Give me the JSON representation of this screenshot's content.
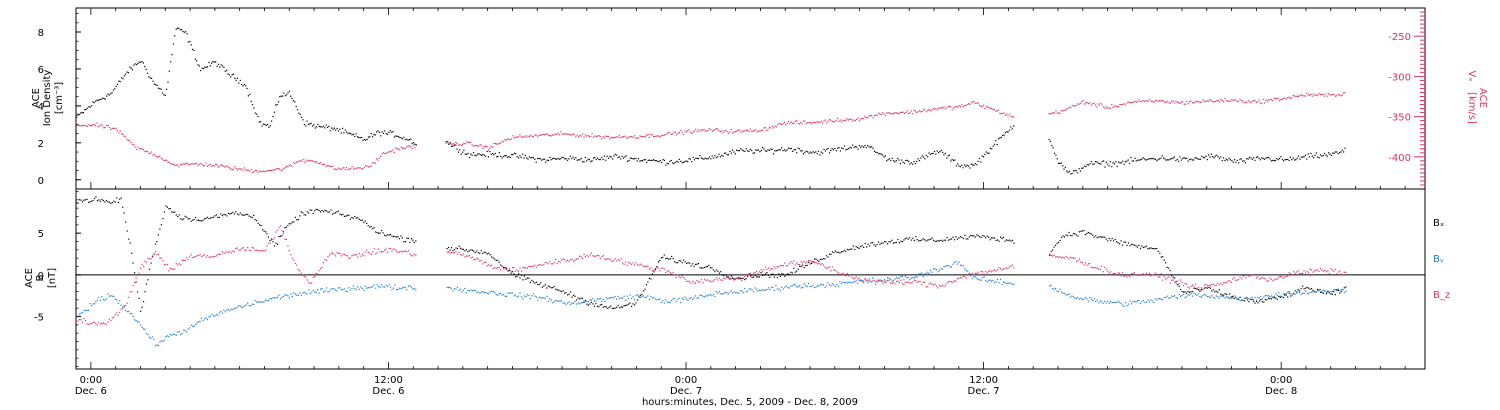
{
  "figure": {
    "xlabel": "hours:minutes, Dec.  5, 2009 - Dec.  8, 2009",
    "xticks": [
      {
        "time": "0:00",
        "day": "Dec. 6",
        "hours": 0
      },
      {
        "time": "12:00",
        "day": "Dec. 6",
        "hours": 12
      },
      {
        "time": "0:00",
        "day": "Dec. 7",
        "hours": 24
      },
      {
        "time": "12:00",
        "day": "Dec. 7",
        "hours": 36
      },
      {
        "time": "0:00",
        "day": "Dec. 8",
        "hours": 48
      }
    ],
    "xlim_hours": [
      -0.6,
      53.8
    ]
  },
  "chart_data": [
    {
      "type": "scatter",
      "left_label": {
        "line1": "ACE",
        "line2": "Ion Density",
        "unit": "[cm⁻³]"
      },
      "right_label": {
        "line1": "ACE",
        "var": "Vₓ",
        "unit": "[km/s]"
      },
      "ylim_left": [
        -0.5,
        9.3
      ],
      "yticks_left": [
        0,
        2,
        4,
        6,
        8
      ],
      "ylim_right": [
        -440,
        -215
      ],
      "yticks_right": [
        -250,
        -300,
        -350,
        -400
      ],
      "colors": {
        "density": "#000000",
        "velocity": "#e0345f"
      },
      "gaps": [
        [
          13.1,
          14.3
        ],
        [
          37.2,
          38.6
        ]
      ],
      "series": [
        {
          "key": "density",
          "axis": "left",
          "x": [
            -0.6,
            0.2,
            0.8,
            1.4,
            2.0,
            2.5,
            3.0,
            3.4,
            3.8,
            4.4,
            5.0,
            5.6,
            6.2,
            6.8,
            7.2,
            7.6,
            8.0,
            8.6,
            9.2,
            9.8,
            10.4,
            11.0,
            11.6,
            12.2,
            12.8,
            13.1,
            14.3,
            15.2,
            16.2,
            17.2,
            18.2,
            19.2,
            20.2,
            21.2,
            22.2,
            23.2,
            24.2,
            25.2,
            26.2,
            27.2,
            28.2,
            29.2,
            30.2,
            31.2,
            32.2,
            33.2,
            34.2,
            35.0,
            35.6,
            37.2,
            38.6,
            39.0,
            39.5,
            40.2,
            41.2,
            42.2,
            43.2,
            44.2,
            45.2,
            46.2,
            47.2,
            48.2,
            49.2,
            50.0,
            50.6
          ],
          "y": [
            3.4,
            4.3,
            4.7,
            5.8,
            6.5,
            5.3,
            4.6,
            8.2,
            8.0,
            6.0,
            6.4,
            5.7,
            5.2,
            3.1,
            2.9,
            4.6,
            4.7,
            3.1,
            2.9,
            2.8,
            2.5,
            2.2,
            2.6,
            2.5,
            2.2,
            2.0,
            2.1,
            1.4,
            1.4,
            1.3,
            1.1,
            1.2,
            1.1,
            1.3,
            1.1,
            1.0,
            1.1,
            1.3,
            1.6,
            1.6,
            1.7,
            1.5,
            1.7,
            1.9,
            1.1,
            1.0,
            1.6,
            0.8,
            0.8,
            3.0,
            2.4,
            1.0,
            0.3,
            0.9,
            0.9,
            1.1,
            1.2,
            1.1,
            1.3,
            1.0,
            1.2,
            1.1,
            1.3,
            1.4,
            1.6
          ]
        },
        {
          "key": "velocity",
          "axis": "right",
          "x": [
            -0.6,
            0.2,
            1.0,
            1.8,
            2.6,
            3.4,
            4.2,
            5.0,
            5.8,
            6.6,
            7.2,
            7.8,
            8.4,
            9.0,
            9.8,
            10.5,
            11.2,
            11.8,
            12.4,
            13.1,
            14.3,
            15.2,
            16.0,
            17.0,
            18.0,
            19.0,
            20.0,
            21.0,
            22.0,
            23.0,
            24.0,
            25.0,
            26.0,
            27.0,
            28.0,
            29.0,
            30.0,
            31.0,
            32.0,
            33.0,
            34.0,
            35.0,
            35.6,
            37.2,
            38.0,
            38.6,
            39.2,
            40.0,
            41.0,
            42.0,
            43.0,
            44.0,
            45.0,
            46.0,
            47.0,
            48.0,
            49.0,
            50.0,
            50.6
          ],
          "y": [
            -360,
            -360,
            -365,
            -388,
            -397,
            -410,
            -408,
            -410,
            -414,
            -417,
            -416,
            -414,
            -404,
            -404,
            -414,
            -414,
            -412,
            -395,
            -389,
            -386,
            -383,
            -383,
            -388,
            -375,
            -373,
            -371,
            -373,
            -375,
            -374,
            -372,
            -368,
            -366,
            -368,
            -366,
            -357,
            -357,
            -354,
            -352,
            -345,
            -344,
            -340,
            -337,
            -332,
            -350,
            -348,
            -346,
            -342,
            -331,
            -338,
            -331,
            -330,
            -332,
            -330,
            -329,
            -331,
            -327,
            -322,
            -323,
            -320
          ]
        }
      ]
    },
    {
      "type": "scatter",
      "left_label": {
        "line1": "ACE",
        "line2": "B",
        "unit": "[nT]"
      },
      "ylim": [
        -11.3,
        10.3
      ],
      "yticks": [
        -5,
        0,
        5
      ],
      "zero_line": true,
      "legend": [
        "Bₓ",
        "Bᵧ",
        "B_z"
      ],
      "gaps": [
        [
          13.1,
          14.3
        ],
        [
          37.2,
          38.6
        ]
      ],
      "series": [
        {
          "name": "Bₓ",
          "color": "#000000",
          "x": [
            -0.6,
            0.2,
            0.8,
            1.2,
            1.6,
            2.0,
            2.4,
            3.0,
            3.6,
            4.2,
            5.0,
            5.8,
            6.6,
            7.4,
            7.8,
            8.4,
            9.0,
            9.6,
            10.2,
            10.8,
            11.4,
            12.0,
            12.6,
            13.1,
            14.3,
            15.0,
            16.0,
            17.0,
            18.0,
            19.0,
            20.0,
            21.0,
            22.0,
            23.0,
            24.0,
            25.0,
            26.0,
            27.0,
            28.0,
            29.0,
            30.0,
            31.0,
            32.0,
            33.0,
            34.0,
            35.0,
            35.6,
            37.2,
            38.0,
            38.6,
            39.2,
            40.0,
            41.0,
            42.0,
            43.0,
            44.0,
            45.0,
            46.0,
            47.0,
            48.0,
            49.0,
            50.0,
            50.6
          ],
          "y": [
            8.9,
            9.1,
            8.7,
            9.2,
            3.0,
            -4.5,
            1.5,
            8.3,
            7.0,
            6.7,
            7.0,
            7.5,
            7.0,
            3.5,
            5.5,
            7.2,
            7.8,
            7.6,
            7.2,
            6.8,
            5.5,
            4.8,
            4.4,
            4.2,
            3.3,
            3.1,
            2.7,
            0.1,
            -1.0,
            -1.9,
            -3.2,
            -4.0,
            -3.3,
            2.2,
            1.5,
            0.9,
            -0.4,
            0.1,
            0.0,
            1.5,
            2.8,
            3.5,
            4.0,
            4.3,
            4.2,
            4.5,
            4.7,
            4.2,
            3.4,
            2.5,
            4.8,
            5.2,
            4.3,
            3.6,
            3.1,
            -2.1,
            -1.6,
            -2.6,
            -3.2,
            -2.6,
            -1.5,
            -2.3,
            -1.6
          ]
        },
        {
          "name": "Bᵧ",
          "color": "#1a7fd4",
          "x": [
            -0.6,
            0.2,
            0.8,
            1.4,
            2.0,
            2.6,
            3.2,
            3.8,
            4.6,
            5.6,
            6.6,
            7.6,
            8.6,
            9.6,
            10.6,
            11.6,
            12.4,
            13.1,
            14.3,
            15.2,
            16.2,
            17.2,
            18.2,
            19.2,
            20.2,
            21.2,
            22.2,
            23.2,
            24.2,
            25.2,
            26.2,
            27.2,
            28.2,
            29.2,
            30.2,
            31.2,
            32.2,
            33.2,
            34.2,
            35.0,
            35.6,
            37.2,
            38.6,
            39.6,
            40.6,
            41.6,
            42.6,
            43.6,
            44.6,
            45.6,
            46.6,
            47.6,
            48.6,
            49.6,
            50.6
          ],
          "y": [
            -5.0,
            -3.1,
            -2.3,
            -4.0,
            -6.0,
            -8.3,
            -7.2,
            -6.6,
            -5.2,
            -4.1,
            -3.3,
            -2.6,
            -2.1,
            -1.8,
            -1.5,
            -1.3,
            -1.5,
            -1.4,
            -1.5,
            -1.8,
            -2.1,
            -2.4,
            -2.7,
            -3.4,
            -3.0,
            -2.7,
            -2.5,
            -3.1,
            -2.8,
            -2.2,
            -1.9,
            -1.7,
            -1.3,
            -1.2,
            -1.0,
            -0.7,
            -0.5,
            -0.2,
            0.8,
            1.6,
            -0.4,
            -1.0,
            -1.2,
            -2.6,
            -3.1,
            -3.4,
            -3.1,
            -2.6,
            -2.3,
            -2.6,
            -2.8,
            -2.4,
            -2.1,
            -1.9,
            -1.8
          ]
        },
        {
          "name": "B_z",
          "color": "#e0345f",
          "x": [
            -0.6,
            0.2,
            0.8,
            1.4,
            2.0,
            2.6,
            3.2,
            4.0,
            5.0,
            6.0,
            7.0,
            7.6,
            8.2,
            8.8,
            9.6,
            10.4,
            11.2,
            12.0,
            12.6,
            13.1,
            14.3,
            15.2,
            16.2,
            17.2,
            18.2,
            19.2,
            20.2,
            21.2,
            22.2,
            23.2,
            24.2,
            25.2,
            26.2,
            27.2,
            28.2,
            29.2,
            30.2,
            31.2,
            32.2,
            33.2,
            34.2,
            35.0,
            35.6,
            37.2,
            38.6,
            39.6,
            40.6,
            41.6,
            42.6,
            43.6,
            44.6,
            45.6,
            46.6,
            47.6,
            48.6,
            49.6,
            50.6
          ],
          "y": [
            -5.1,
            -5.9,
            -5.4,
            -3.5,
            1.0,
            2.8,
            0.5,
            2.4,
            2.3,
            3.2,
            2.9,
            6.0,
            1.5,
            -1.0,
            2.6,
            2.3,
            2.7,
            3.1,
            2.8,
            2.5,
            2.9,
            2.3,
            1.0,
            0.6,
            1.4,
            1.8,
            2.5,
            1.8,
            1.1,
            0.6,
            -0.8,
            -0.5,
            -0.3,
            0.8,
            1.4,
            1.6,
            0.3,
            -0.6,
            -0.9,
            -0.8,
            -1.3,
            -0.3,
            0.2,
            1.0,
            2.4,
            2.0,
            0.9,
            0.0,
            0.2,
            -0.6,
            -1.5,
            -1.0,
            0.0,
            -0.5,
            0.3,
            0.6,
            0.3
          ]
        }
      ]
    }
  ]
}
